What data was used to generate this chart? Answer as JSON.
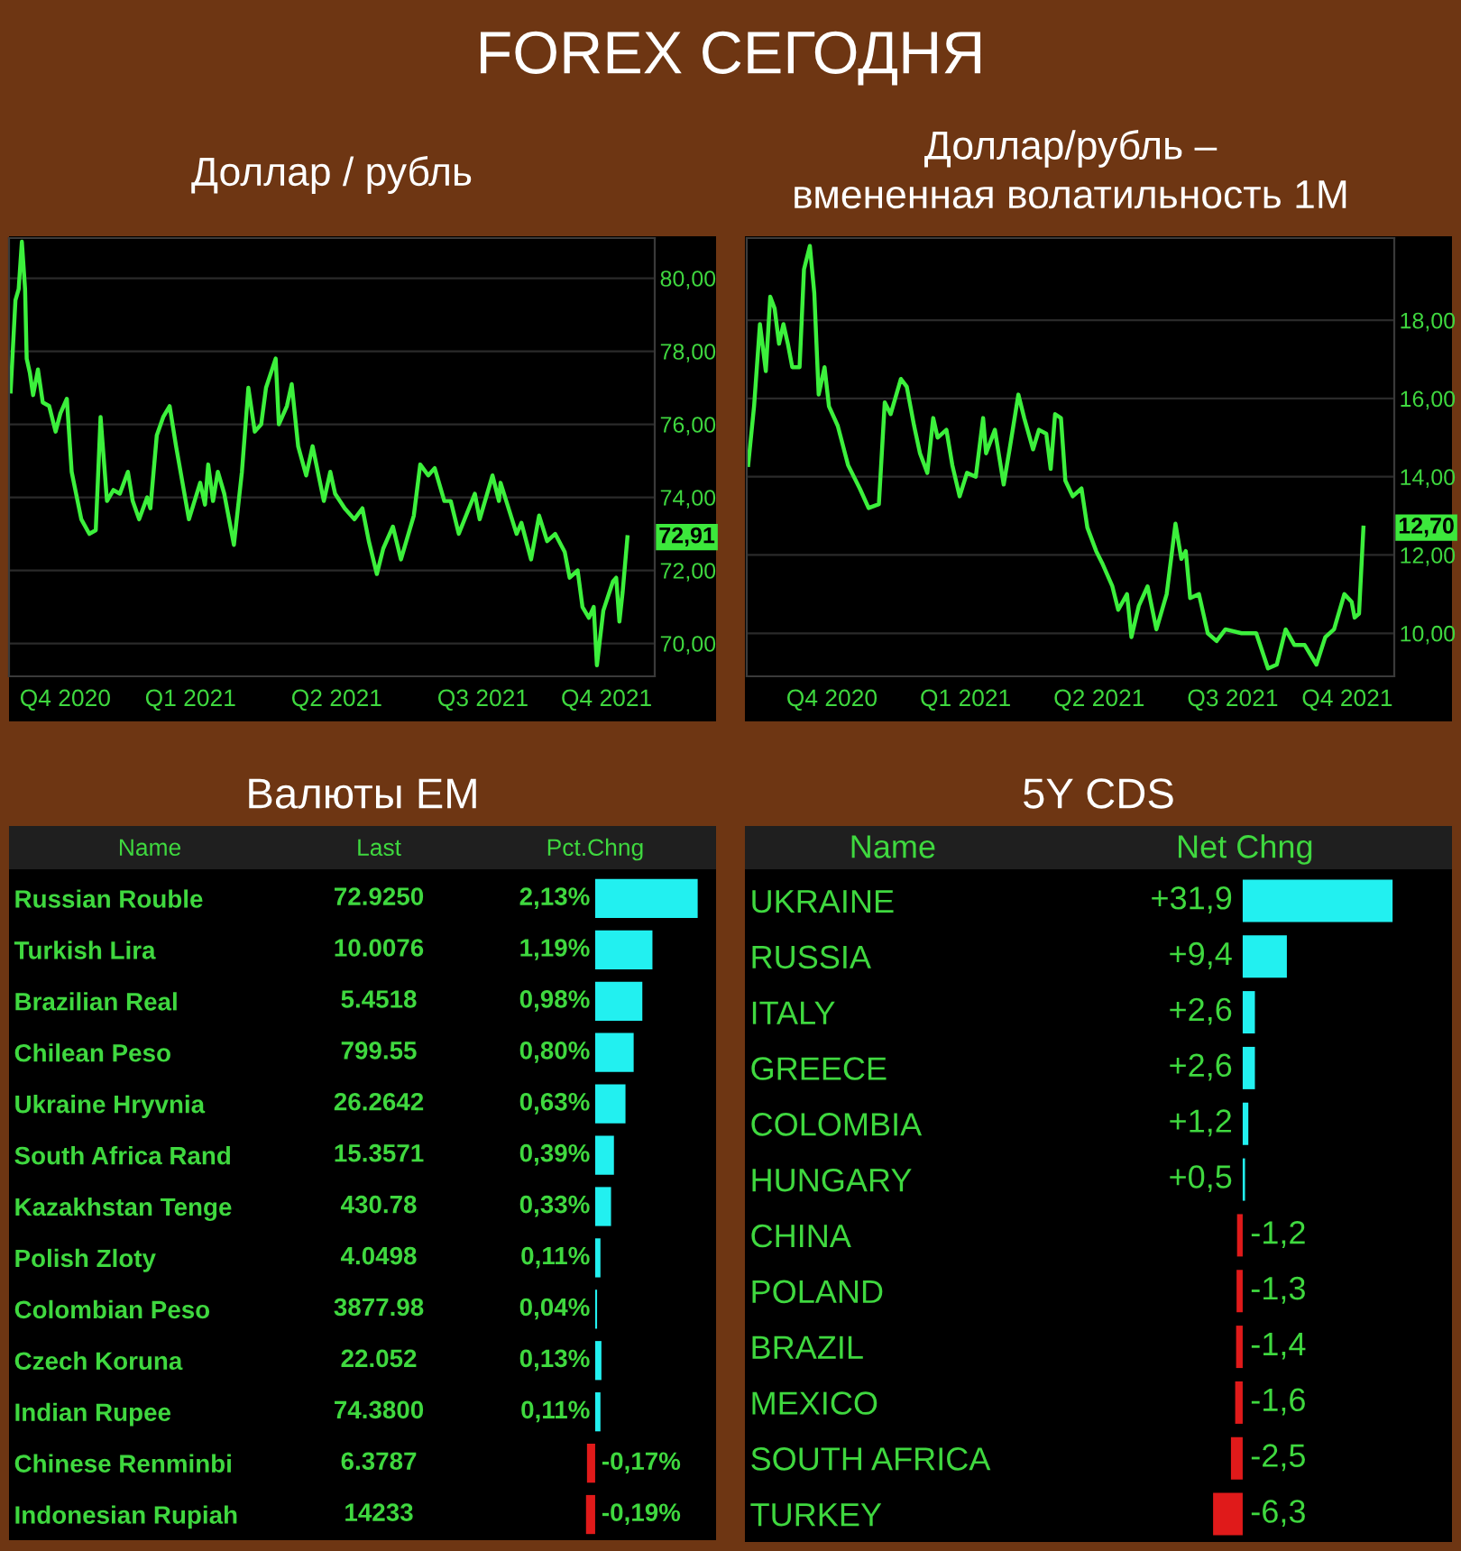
{
  "chart_data": [
    {
      "type": "other",
      "title": "FOREX СЕГОДНЯ"
    },
    {
      "type": "line",
      "title": "Доллар / рубль",
      "x": [
        "2020-10-25",
        "2020-10-28",
        "2020-10-30",
        "2020-11-01",
        "2020-11-03",
        "2020-11-04",
        "2020-11-06",
        "2020-11-08",
        "2020-11-11",
        "2020-11-14",
        "2020-11-18",
        "2020-11-22",
        "2020-11-25",
        "2020-11-29",
        "2020-12-02",
        "2020-12-08",
        "2020-12-13",
        "2020-12-17",
        "2020-12-20",
        "2020-12-24",
        "2020-12-28",
        "2021-01-01",
        "2021-01-06",
        "2021-01-09",
        "2021-01-13",
        "2021-01-18",
        "2021-01-20",
        "2021-01-24",
        "2021-01-28",
        "2021-02-01",
        "2021-02-05",
        "2021-02-13",
        "2021-02-20",
        "2021-02-23",
        "2021-02-25",
        "2021-02-28",
        "2021-03-03",
        "2021-03-07",
        "2021-03-13",
        "2021-03-18",
        "2021-03-22",
        "2021-03-26",
        "2021-03-30",
        "2021-04-02",
        "2021-04-08",
        "2021-04-10",
        "2021-04-15",
        "2021-04-18",
        "2021-04-22",
        "2021-04-27",
        "2021-05-01",
        "2021-05-08",
        "2021-05-12",
        "2021-05-15",
        "2021-05-21",
        "2021-05-27",
        "2021-06-01",
        "2021-06-05",
        "2021-06-10",
        "2021-06-14",
        "2021-06-20",
        "2021-06-25",
        "2021-07-03",
        "2021-07-07",
        "2021-07-12",
        "2021-07-16",
        "2021-07-22",
        "2021-07-26",
        "2021-07-31",
        "2021-08-10",
        "2021-08-13",
        "2021-08-21",
        "2021-08-25",
        "2021-08-26",
        "2021-09-05",
        "2021-09-08",
        "2021-09-14",
        "2021-09-19",
        "2021-09-24",
        "2021-09-29",
        "2021-10-05",
        "2021-10-08",
        "2021-10-13",
        "2021-10-16",
        "2021-10-20",
        "2021-10-23",
        "2021-10-25",
        "2021-10-29",
        "2021-11-04",
        "2021-11-06",
        "2021-11-08",
        "2021-11-10",
        "2021-11-13"
      ],
      "series": [
        {
          "color": "#3cf03c",
          "values": [
            76.9,
            79.4,
            79.7,
            81.0,
            79.7,
            77.8,
            77.4,
            76.8,
            77.5,
            76.6,
            76.5,
            75.8,
            76.3,
            76.7,
            74.7,
            73.4,
            73.0,
            73.1,
            76.2,
            73.9,
            74.2,
            74.1,
            74.7,
            73.9,
            73.4,
            74.0,
            73.7,
            75.7,
            76.2,
            76.5,
            75.4,
            73.4,
            74.4,
            73.8,
            74.9,
            73.9,
            74.7,
            74.1,
            72.7,
            74.7,
            77.0,
            75.8,
            76.0,
            77.0,
            77.8,
            76.0,
            76.5,
            77.1,
            75.4,
            74.6,
            75.4,
            73.9,
            74.7,
            74.1,
            73.7,
            73.4,
            73.7,
            72.8,
            71.9,
            72.6,
            73.2,
            72.3,
            73.5,
            74.9,
            74.6,
            74.8,
            73.9,
            73.9,
            73.0,
            74.1,
            73.4,
            74.6,
            73.9,
            74.4,
            73.0,
            73.3,
            72.3,
            73.5,
            72.8,
            73.0,
            72.5,
            71.8,
            72.0,
            71.0,
            70.7,
            71.0,
            69.4,
            70.9,
            71.7,
            71.8,
            70.6,
            71.4,
            72.91
          ]
        }
      ],
      "xlim": [
        "2020-10-24",
        "2021-11-30"
      ],
      "xticks": [
        {
          "value": "2020-11-28",
          "label": "Q4 2020"
        },
        {
          "value": "2021-02-14",
          "label": "Q1 2021"
        },
        {
          "value": "2021-05-16",
          "label": "Q2 2021"
        },
        {
          "value": "2021-08-15",
          "label": "Q3 2021"
        },
        {
          "value": "2021-10-31",
          "label": "Q4 2021"
        }
      ],
      "ylim": [
        69.1,
        81.1
      ],
      "yticks": [
        {
          "value": 70,
          "label": "70,00"
        },
        {
          "value": 72,
          "label": "72,00"
        },
        {
          "value": 74,
          "label": "74,00"
        },
        {
          "value": 76,
          "label": "76,00"
        },
        {
          "value": 78,
          "label": "78,00"
        },
        {
          "value": 80,
          "label": "80,00"
        }
      ],
      "grid": "y",
      "annotations": [
        {
          "text": "72,91",
          "x": "2021-11-13",
          "y": 72.91
        }
      ]
    },
    {
      "type": "line",
      "title": "Доллар/рубль –\nвмененная волатильность 1M",
      "x": [
        "2020-09-19",
        "2020-09-23",
        "2020-09-27",
        "2020-10-01",
        "2020-10-04",
        "2020-10-07",
        "2020-10-10",
        "2020-10-13",
        "2020-10-16",
        "2020-10-19",
        "2020-10-24",
        "2020-10-27",
        "2020-10-31",
        "2020-11-03",
        "2020-11-06",
        "2020-11-10",
        "2020-11-13",
        "2020-11-19",
        "2020-11-26",
        "2020-12-04",
        "2020-12-10",
        "2020-12-17",
        "2020-12-21",
        "2020-12-25",
        "2021-01-01",
        "2021-01-05",
        "2021-01-10",
        "2021-01-14",
        "2021-01-19",
        "2021-01-23",
        "2021-01-26",
        "2021-02-01",
        "2021-02-05",
        "2021-02-10",
        "2021-02-15",
        "2021-02-21",
        "2021-02-26",
        "2021-02-28",
        "2021-03-06",
        "2021-03-12",
        "2021-03-16",
        "2021-03-22",
        "2021-03-26",
        "2021-04-01",
        "2021-04-05",
        "2021-04-10",
        "2021-04-13",
        "2021-04-16",
        "2021-04-20",
        "2021-04-23",
        "2021-04-28",
        "2021-05-04",
        "2021-05-08",
        "2021-05-14",
        "2021-05-18",
        "2021-05-25",
        "2021-05-29",
        "2021-06-04",
        "2021-06-07",
        "2021-06-12",
        "2021-06-18",
        "2021-06-24",
        "2021-07-01",
        "2021-07-07",
        "2021-07-11",
        "2021-07-14",
        "2021-07-17",
        "2021-07-23",
        "2021-07-29",
        "2021-08-04",
        "2021-08-10",
        "2021-08-21",
        "2021-08-31",
        "2021-09-08",
        "2021-09-14",
        "2021-09-20",
        "2021-09-26",
        "2021-10-03",
        "2021-10-11",
        "2021-10-17",
        "2021-10-23",
        "2021-10-30",
        "2021-11-04",
        "2021-11-06",
        "2021-11-09",
        "2021-11-12"
      ],
      "series": [
        {
          "color": "#3cf03c",
          "values": [
            14.3,
            15.8,
            17.9,
            16.7,
            18.6,
            18.3,
            17.4,
            17.9,
            17.4,
            16.8,
            16.8,
            19.3,
            19.9,
            18.7,
            16.1,
            16.8,
            15.8,
            15.3,
            14.3,
            13.7,
            13.2,
            13.3,
            15.9,
            15.6,
            16.5,
            16.3,
            15.3,
            14.6,
            14.1,
            15.5,
            15.0,
            15.2,
            14.3,
            13.5,
            14.1,
            14.0,
            15.5,
            14.6,
            15.2,
            13.8,
            14.7,
            16.1,
            15.5,
            14.7,
            15.2,
            15.1,
            14.2,
            15.6,
            15.5,
            13.9,
            13.5,
            13.7,
            12.7,
            12.1,
            11.8,
            11.2,
            10.6,
            11.0,
            9.9,
            10.7,
            11.2,
            10.1,
            11.0,
            12.8,
            11.9,
            12.1,
            10.9,
            11.0,
            10.0,
            9.8,
            10.1,
            10.0,
            10.0,
            9.1,
            9.2,
            10.1,
            9.7,
            9.7,
            9.2,
            9.9,
            10.1,
            11.0,
            10.8,
            10.4,
            10.5,
            12.7
          ]
        }
      ],
      "xlim": [
        "2020-09-18",
        "2021-12-03"
      ],
      "xticks": [
        {
          "value": "2020-11-15",
          "label": "Q4 2020"
        },
        {
          "value": "2021-02-14",
          "label": "Q1 2021"
        },
        {
          "value": "2021-05-16",
          "label": "Q2 2021"
        },
        {
          "value": "2021-08-15",
          "label": "Q3 2021"
        },
        {
          "value": "2021-11-01",
          "label": "Q4 2021"
        }
      ],
      "ylim": [
        8.9,
        20.1
      ],
      "yticks": [
        {
          "value": 10,
          "label": "10,00"
        },
        {
          "value": 12,
          "label": "12,00"
        },
        {
          "value": 14,
          "label": "14,00"
        },
        {
          "value": 16,
          "label": "16,00"
        },
        {
          "value": 18,
          "label": "18,00"
        }
      ],
      "grid": "y",
      "annotations": [
        {
          "text": "12,70",
          "x": "2021-11-12",
          "y": 12.7
        }
      ]
    },
    {
      "type": "bar",
      "orientation": "horizontal",
      "title": "Валюты EM",
      "ylabel": "Name",
      "xlabel": "Pct.Chng",
      "y2label": "Last",
      "tick_labels": "y",
      "categories": [
        "Russian Rouble",
        "Turkish Lira",
        "Brazilian Real",
        "Chilean Peso",
        "Ukraine Hryvnia",
        "South Africa Rand",
        "Kazakhstan Tenge",
        "Polish Zloty",
        "Colombian Peso",
        "Czech Koruna",
        "Indian Rupee",
        "Chinese Renminbi",
        "Indonesian Rupiah"
      ],
      "y2_categories": [
        "72.9250",
        "10.0076",
        "5.4518",
        "799.55",
        "26.2642",
        "15.3571",
        "430.78",
        "4.0498",
        "3877.98",
        "22.052",
        "74.3800",
        "6.3787",
        "14233"
      ],
      "values": [
        2.13,
        1.19,
        0.98,
        0.8,
        0.63,
        0.39,
        0.33,
        0.11,
        0.04,
        0.13,
        0.11,
        -0.17,
        -0.19
      ],
      "value_labels": [
        "2,13%",
        "1,19%",
        "0,98%",
        "0,80%",
        "0,63%",
        "0,39%",
        "0,33%",
        "0,11%",
        "0,04%",
        "0,13%",
        "0,11%",
        "-0,17%",
        "-0,19%"
      ],
      "colors": [
        "#22f0f0",
        "#22f0f0",
        "#22f0f0",
        "#22f0f0",
        "#22f0f0",
        "#22f0f0",
        "#22f0f0",
        "#22f0f0",
        "#22f0f0",
        "#22f0f0",
        "#22f0f0",
        "#e01a1a",
        "#e01a1a"
      ]
    },
    {
      "type": "bar",
      "orientation": "horizontal",
      "title": "5Y CDS",
      "ylabel": "Name",
      "xlabel": "Net Chng",
      "tick_labels": "y",
      "categories": [
        "UKRAINE",
        "RUSSIA",
        "ITALY",
        "GREECE",
        "COLOMBIA",
        "HUNGARY",
        "CHINA",
        "POLAND",
        "BRAZIL",
        "MEXICO",
        "SOUTH AFRICA",
        "TURKEY"
      ],
      "values": [
        31.9,
        9.4,
        2.6,
        2.6,
        1.2,
        0.5,
        -1.2,
        -1.3,
        -1.4,
        -1.6,
        -2.5,
        -6.3
      ],
      "value_labels": [
        "+31,9",
        "+9,4",
        "+2,6",
        "+2,6",
        "+1,2",
        "+0,5",
        "-1,2",
        "-1,3",
        "-1,4",
        "-1,6",
        "-2,5",
        "-6,3"
      ],
      "colors": [
        "#22f0f0",
        "#22f0f0",
        "#22f0f0",
        "#22f0f0",
        "#22f0f0",
        "#22f0f0",
        "#e01a1a",
        "#e01a1a",
        "#e01a1a",
        "#e01a1a",
        "#e01a1a",
        "#e01a1a"
      ]
    }
  ]
}
